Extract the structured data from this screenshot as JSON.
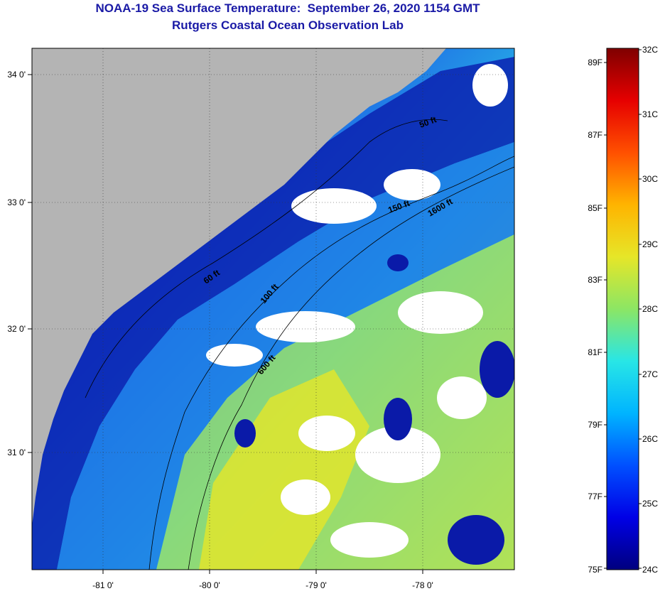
{
  "header": {
    "title": "NOAA-19 Sea Surface Temperature:  September 26, 2020 1154 GMT",
    "subtitle": "Rutgers Coastal Ocean Observation Lab"
  },
  "map": {
    "longitude_labels": [
      "-81 0'",
      "-80 0'",
      "-79 0'",
      "-78 0'"
    ],
    "latitude_labels": [
      "34 0'",
      "33 0'",
      "32 0'",
      "31 0'"
    ],
    "contour_labels": [
      "50 ft",
      "60 ft",
      "100 ft",
      "150 ft",
      "600 ft",
      "100 ft",
      "1600 ft"
    ],
    "colors": {
      "land": "#b4b4b4",
      "cloud": "#ffffff",
      "cold_water": "#0a1aa8",
      "shelf_water": "#1e5ae6",
      "mid_water": "#28aae6",
      "warm_water": "#c8e650",
      "hot_water": "#e6e628"
    }
  },
  "legend": {
    "fahrenheit_labels": [
      "89F",
      "87F",
      "85F",
      "83F",
      "81F",
      "79F",
      "77F",
      "75F"
    ],
    "celsius_labels": [
      "32C",
      "31C",
      "30C",
      "29C",
      "28C",
      "27C",
      "26C",
      "25C",
      "24C"
    ],
    "scale_min_c": 24,
    "scale_max_c": 32,
    "gradient_stops": [
      "#00007f",
      "#0000e6",
      "#0050ff",
      "#00b4ff",
      "#28e6e6",
      "#8ce664",
      "#e6e628",
      "#ffb400",
      "#ff5000",
      "#e60000",
      "#7f0000"
    ]
  }
}
